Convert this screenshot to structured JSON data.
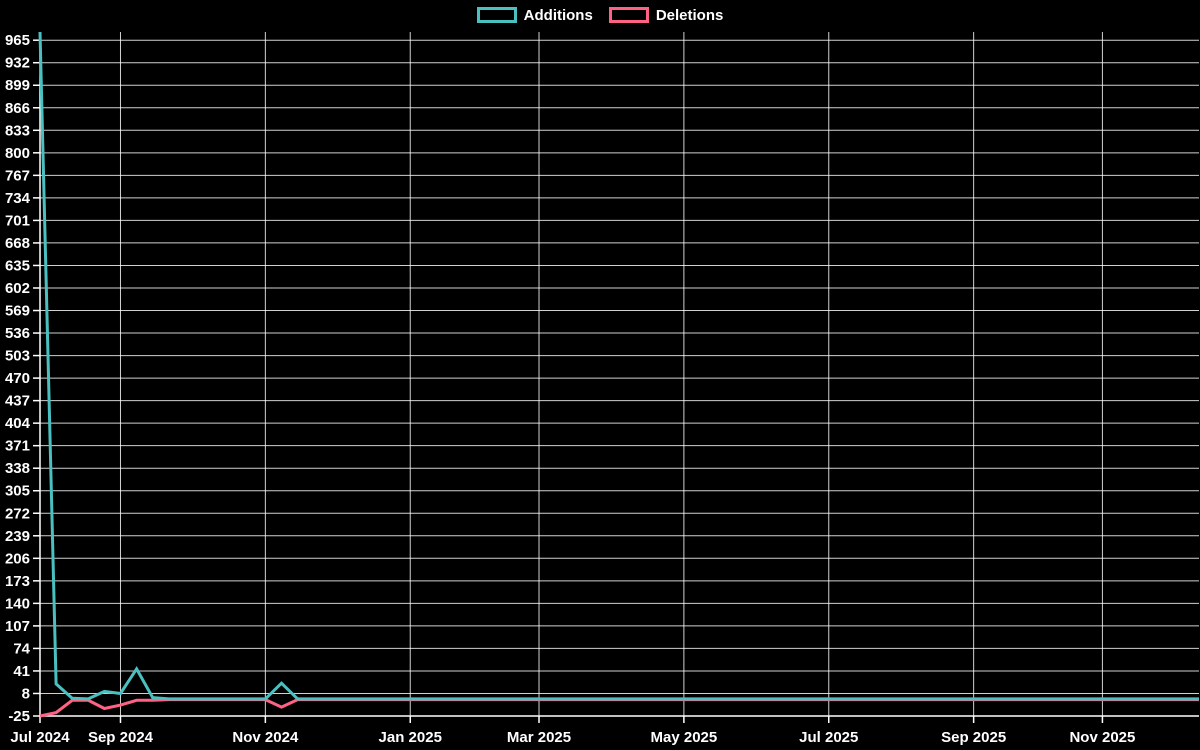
{
  "chart_data": {
    "type": "line",
    "title": "",
    "background_color": "#000000",
    "grid_color": "rgba(255,255,255,0.82)",
    "axis_color": "#ffffff",
    "text_color": "#ffffff",
    "legend": {
      "position": "top"
    },
    "x_axis": {
      "type": "time",
      "unit": "week",
      "start_week": "2024-07-28",
      "weeks_total": 73,
      "ticks": [
        {
          "label": "Jul 2024",
          "week": 0
        },
        {
          "label": "Sep 2024",
          "week": 5
        },
        {
          "label": "Nov 2024",
          "week": 14
        },
        {
          "label": "Jan 2025",
          "week": 23
        },
        {
          "label": "Mar 2025",
          "week": 31
        },
        {
          "label": "May 2025",
          "week": 40
        },
        {
          "label": "Jul 2025",
          "week": 49
        },
        {
          "label": "Sep 2025",
          "week": 58
        },
        {
          "label": "Nov 2025",
          "week": 66
        }
      ]
    },
    "y_axis": {
      "min": -25,
      "max": 977,
      "tick_step": 33,
      "tick_values": [
        965,
        932,
        899,
        866,
        833,
        800,
        767,
        734,
        701,
        668,
        635,
        602,
        569,
        536,
        503,
        470,
        437,
        404,
        371,
        338,
        305,
        272,
        239,
        206,
        173,
        140,
        107,
        74,
        41,
        8,
        -25
      ]
    },
    "series": [
      {
        "name": "Additions",
        "color": "#4bc0c0",
        "values": [
          977,
          22,
          1,
          0,
          11,
          8,
          44,
          2,
          0,
          0,
          0,
          0,
          0,
          0,
          0,
          23,
          0,
          0,
          0,
          0,
          0,
          0,
          0,
          0,
          0,
          0,
          0,
          0,
          0,
          0,
          0,
          0,
          0,
          0,
          0,
          0,
          0,
          0,
          0,
          0,
          0,
          0,
          0,
          0,
          0,
          0,
          0,
          0,
          0,
          0,
          0,
          0,
          0,
          0,
          0,
          0,
          0,
          0,
          0,
          0,
          0,
          0,
          0,
          0,
          0,
          0,
          0,
          0,
          0,
          0,
          0,
          0,
          0
        ]
      },
      {
        "name": "Deletions",
        "color": "#ff6384",
        "values": [
          -25,
          -20,
          -2,
          -2,
          -14,
          -9,
          -2,
          -2,
          -1,
          -1,
          -1,
          -1,
          -1,
          -1,
          -1,
          -12,
          -1,
          -1,
          -1,
          -1,
          -1,
          -1,
          -1,
          -1,
          -1,
          -1,
          -1,
          -1,
          -1,
          -1,
          -1,
          -1,
          -1,
          -1,
          -1,
          -1,
          -1,
          -1,
          -1,
          -1,
          -1,
          -1,
          -1,
          -1,
          -1,
          -1,
          -1,
          -1,
          -1,
          -1,
          -1,
          -1,
          -1,
          -1,
          -1,
          -1,
          -1,
          -1,
          -1,
          -1,
          -1,
          -1,
          -1,
          -1,
          -1,
          -1,
          -1,
          -1,
          -1,
          -1,
          -1,
          -1,
          -1
        ]
      }
    ]
  }
}
